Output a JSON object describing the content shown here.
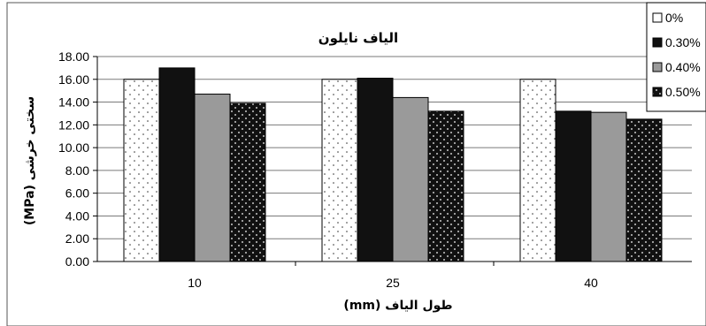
{
  "chart_data": {
    "type": "bar",
    "title": "الیاف نایلون",
    "xlabel": "طول الیاف (mm)",
    "ylabel": "سختی خرشی (MPa)",
    "categories": [
      "10",
      "25",
      "40"
    ],
    "ylim": [
      0,
      18
    ],
    "yticks": [
      "0.00",
      "2.00",
      "4.00",
      "6.00",
      "8.00",
      "10.00",
      "12.00",
      "14.00",
      "16.00",
      "18.00"
    ],
    "grid": true,
    "legend_position": "top-right",
    "series": [
      {
        "name": "0%",
        "values": [
          16.0,
          16.0,
          16.0
        ],
        "fill": "#ffffff",
        "pattern": "sparse-dots"
      },
      {
        "name": "0.30%",
        "values": [
          17.0,
          16.1,
          13.2
        ],
        "fill": "#111111",
        "pattern": "solid"
      },
      {
        "name": "0.40%",
        "values": [
          14.7,
          14.4,
          13.1
        ],
        "fill": "#9a9a9a",
        "pattern": "solid"
      },
      {
        "name": "0.50%",
        "values": [
          13.9,
          13.2,
          12.5
        ],
        "fill": "#111111",
        "pattern": "white-dots"
      }
    ]
  }
}
